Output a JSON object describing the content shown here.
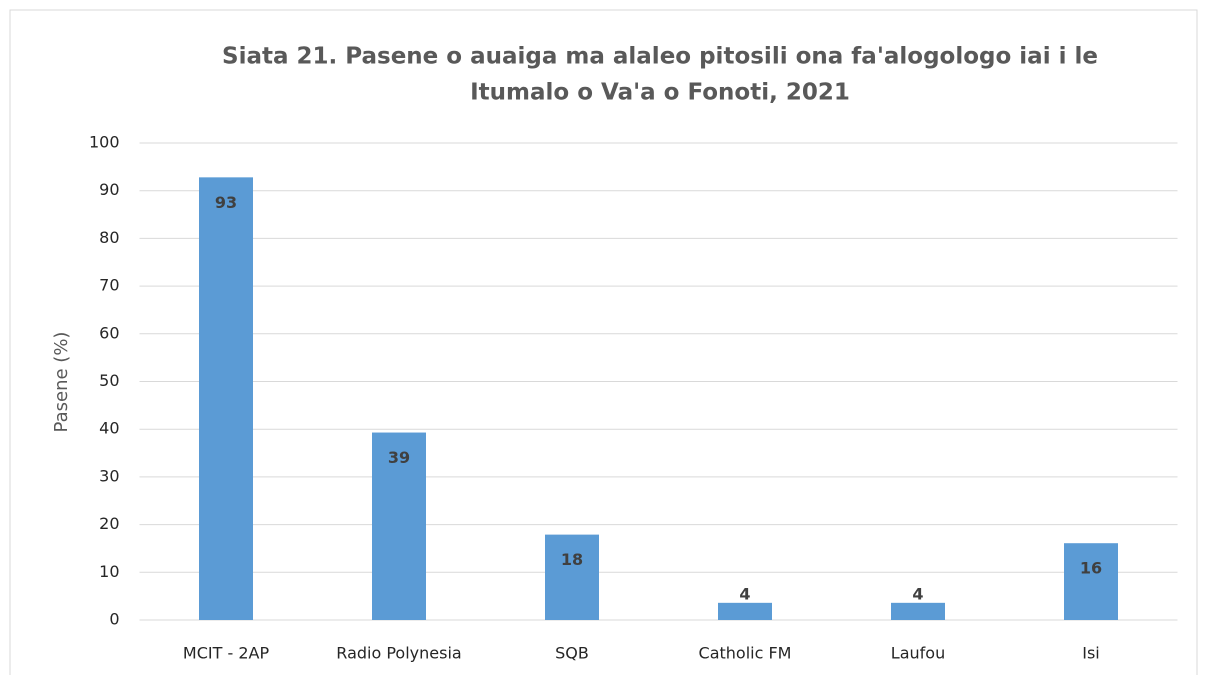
{
  "chart_data": {
    "type": "bar",
    "title": [
      "Siata 21. Pasene o auaiga ma alaleo pitosili ona fa'alogologo iai i le",
      "Itumalo o Va'a o Fonoti, 2021"
    ],
    "y_label": "Pasene (%)",
    "categories": [
      "MCIT - 2AP",
      "Radio Polynesia",
      "SQB",
      "Catholic FM",
      "Laufou",
      "Isi"
    ],
    "values": [
      92.8,
      39.3,
      17.9,
      3.6,
      3.6,
      16.1
    ],
    "value_labels": [
      "93",
      "39",
      "18",
      "4",
      "4",
      "16"
    ],
    "color": "#5b9bd5",
    "ylim": [
      0,
      100
    ],
    "yticks": [
      0,
      10,
      20,
      30,
      40,
      50,
      60,
      70,
      80,
      90,
      100
    ],
    "grid": true
  }
}
